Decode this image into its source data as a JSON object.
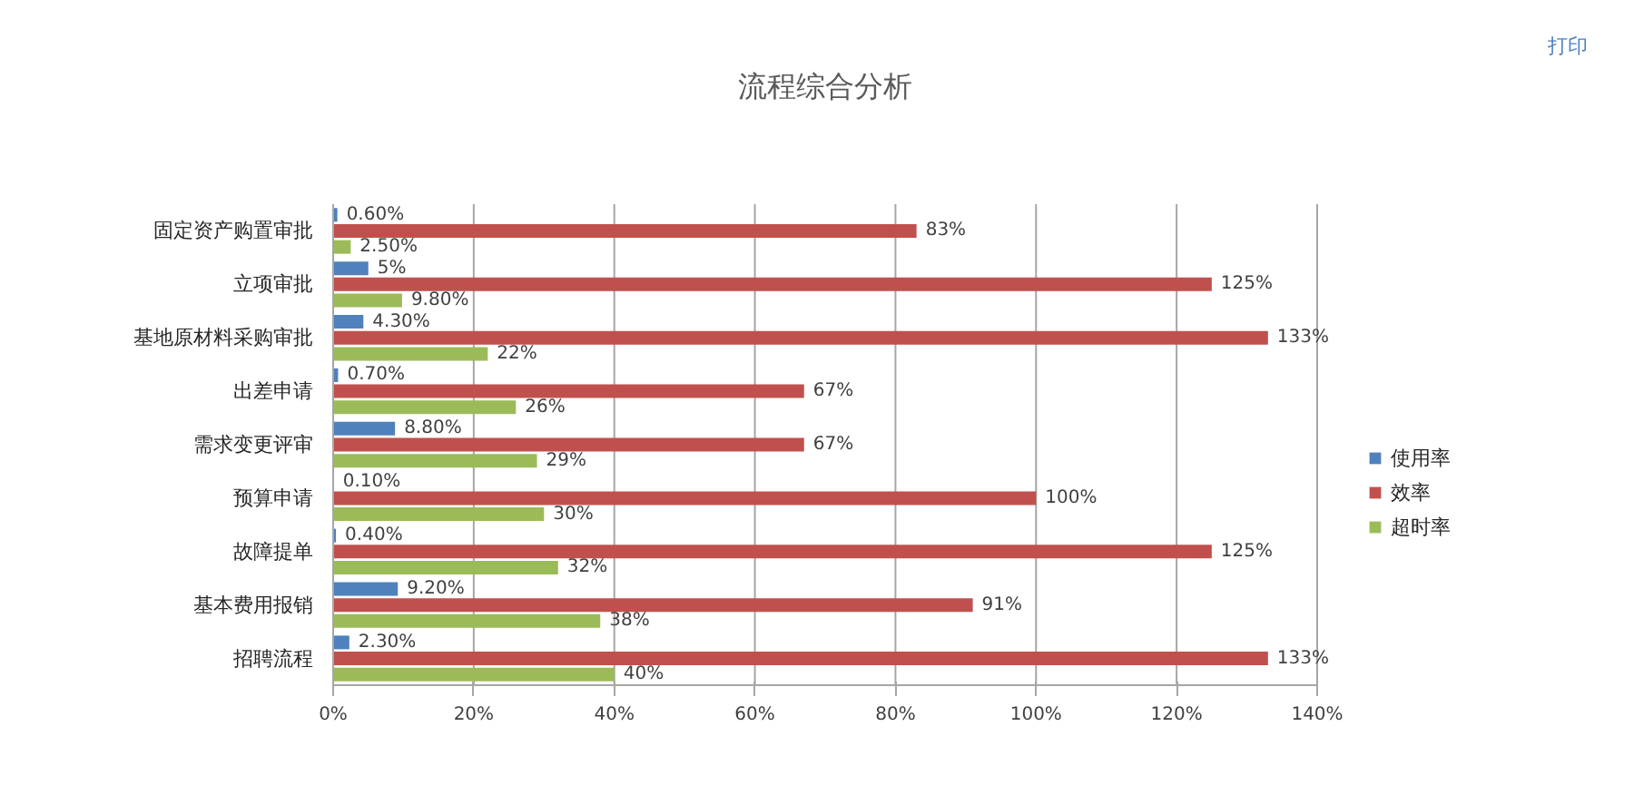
{
  "chart_data": {
    "type": "bar",
    "orientation": "horizontal",
    "title": "流程综合分析",
    "annotations": [
      "打印"
    ],
    "categories": [
      "固定资产购置审批",
      "立项审批",
      "基地原材料采购审批",
      "出差申请",
      "需求变更评审",
      "预算申请",
      "故障提单",
      "基本费用报销",
      "招聘流程"
    ],
    "series": [
      {
        "name": "使用率",
        "color": "#4f81bd",
        "values": [
          0.6,
          5,
          4.3,
          0.7,
          8.8,
          0.1,
          0.4,
          9.2,
          2.3
        ],
        "value_labels": [
          "0.60%",
          "5%",
          "4.30%",
          "0.70%",
          "8.80%",
          "0.10%",
          "0.40%",
          "9.20%",
          "2.30%"
        ]
      },
      {
        "name": "效率",
        "color": "#c0504d",
        "values": [
          83,
          125,
          133,
          67,
          67,
          100,
          125,
          91,
          133
        ],
        "value_labels": [
          "83%",
          "125%",
          "133%",
          "67%",
          "67%",
          "100%",
          "125%",
          "91%",
          "133%"
        ]
      },
      {
        "name": "超时率",
        "color": "#9bbb59",
        "values": [
          2.5,
          9.8,
          22,
          26,
          29,
          30,
          32,
          38,
          40
        ],
        "value_labels": [
          "2.50%",
          "9.80%",
          "22%",
          "26%",
          "29%",
          "30%",
          "32%",
          "38%",
          "40%"
        ]
      }
    ],
    "xlim": [
      0,
      140
    ],
    "xticks": [
      {
        "value": 0,
        "label": "0%"
      },
      {
        "value": 20,
        "label": "20%"
      },
      {
        "value": 40,
        "label": "40%"
      },
      {
        "value": 60,
        "label": "60%"
      },
      {
        "value": 80,
        "label": "80%"
      },
      {
        "value": 100,
        "label": "100%"
      },
      {
        "value": 120,
        "label": "120%"
      },
      {
        "value": 140,
        "label": "140%"
      }
    ],
    "grid": "x",
    "legend": "right"
  }
}
